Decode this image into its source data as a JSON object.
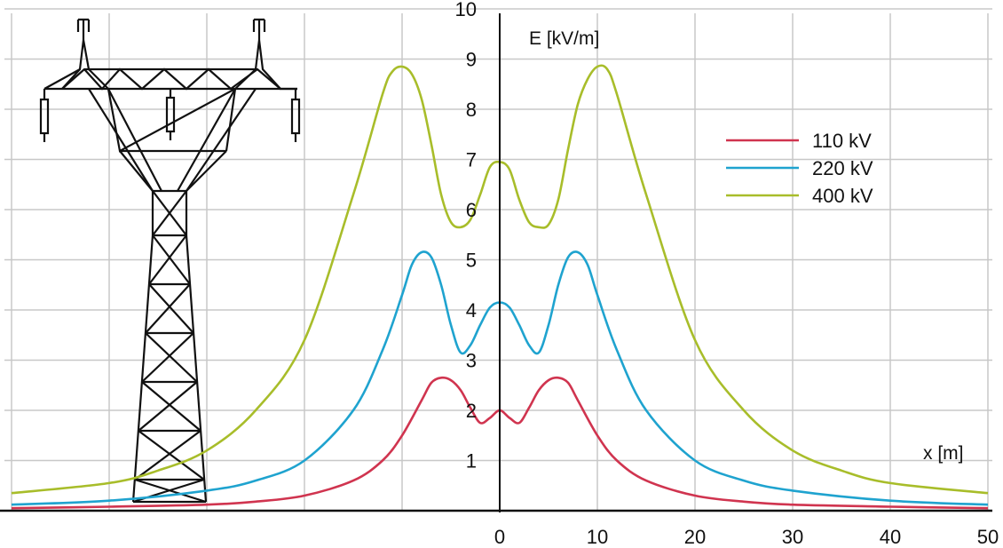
{
  "chart_data": {
    "type": "line",
    "xlabel": "x [m]",
    "ylabel": "E [kV/m]",
    "xlim": [
      -50,
      50
    ],
    "ylim": [
      0,
      10
    ],
    "x_ticks": [
      "0",
      "10",
      "20",
      "30",
      "40",
      "50"
    ],
    "y_ticks": [
      "1",
      "2",
      "3",
      "4",
      "5",
      "6",
      "7",
      "8",
      "9",
      "10"
    ],
    "grid": true,
    "legend_position": "top-right",
    "series": [
      {
        "name": "110 kV",
        "color": "#d0344f",
        "x": [
          -50,
          -40,
          -30,
          -25,
          -20,
          -15,
          -12,
          -10,
          -8,
          -7,
          -6,
          -5,
          -4,
          -3,
          -2,
          -1,
          0,
          1,
          2,
          3,
          4,
          5,
          6,
          7,
          8,
          10,
          12,
          15,
          20,
          25,
          30,
          40,
          50
        ],
        "y": [
          0.05,
          0.08,
          0.12,
          0.18,
          0.3,
          0.6,
          1.0,
          1.5,
          2.2,
          2.55,
          2.65,
          2.6,
          2.4,
          2.05,
          1.75,
          1.85,
          2.0,
          1.85,
          1.75,
          2.05,
          2.4,
          2.6,
          2.65,
          2.55,
          2.2,
          1.5,
          1.0,
          0.6,
          0.3,
          0.18,
          0.12,
          0.08,
          0.05
        ]
      },
      {
        "name": "220 kV",
        "color": "#1fa3cf",
        "x": [
          -50,
          -40,
          -30,
          -25,
          -20,
          -15,
          -12,
          -10,
          -9,
          -8,
          -7,
          -6,
          -5,
          -4,
          -3,
          -2,
          -1,
          0,
          1,
          2,
          3,
          4,
          5,
          6,
          7,
          8,
          9,
          10,
          12,
          15,
          20,
          25,
          30,
          40,
          50
        ],
        "y": [
          0.12,
          0.2,
          0.4,
          0.6,
          1.0,
          2.0,
          3.2,
          4.3,
          4.9,
          5.15,
          5.05,
          4.5,
          3.7,
          3.15,
          3.3,
          3.7,
          4.05,
          4.15,
          4.05,
          3.7,
          3.3,
          3.15,
          3.7,
          4.5,
          5.05,
          5.15,
          4.9,
          4.3,
          3.2,
          2.0,
          1.0,
          0.6,
          0.4,
          0.2,
          0.12
        ]
      },
      {
        "name": "400 kV",
        "color": "#a8bd2a",
        "x": [
          -50,
          -40,
          -35,
          -30,
          -25,
          -20,
          -15,
          -12,
          -11,
          -10,
          -9,
          -8,
          -7,
          -6,
          -5,
          -4,
          -3,
          -2,
          -1,
          0,
          1,
          2,
          3,
          4,
          5,
          6,
          7,
          8,
          9,
          10,
          11,
          12,
          15,
          20,
          25,
          30,
          35,
          40,
          50
        ],
        "y": [
          0.35,
          0.55,
          0.8,
          1.2,
          2.0,
          3.4,
          6.3,
          8.3,
          8.75,
          8.85,
          8.7,
          8.2,
          7.3,
          6.3,
          5.75,
          5.65,
          5.8,
          6.3,
          6.85,
          6.95,
          6.8,
          6.2,
          5.75,
          5.65,
          5.7,
          6.2,
          7.2,
          8.1,
          8.6,
          8.85,
          8.8,
          8.3,
          6.3,
          3.4,
          2.0,
          1.2,
          0.8,
          0.55,
          0.35
        ]
      }
    ]
  }
}
